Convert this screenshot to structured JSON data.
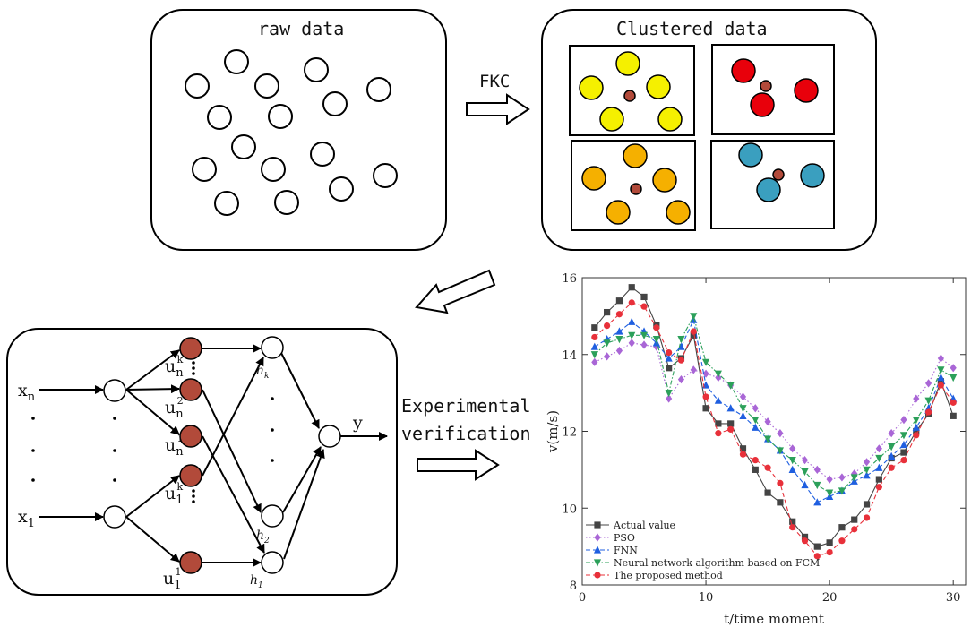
{
  "diagram": {
    "raw_title": "raw data",
    "clustered_title": "Clustered data",
    "step1_label": "FKC",
    "step3_label_line1": "Experimental",
    "step3_label_line2": "verification",
    "cluster_colors": {
      "yellow": "#f5f000",
      "red": "#e8000b",
      "orange": "#f5b000",
      "teal": "#3a9fbf",
      "center": "#b24a3a"
    },
    "network": {
      "input_top": "x",
      "input_top_sub": "n",
      "input_bottom": "x",
      "input_bottom_sub": "1",
      "output": "y",
      "u_labels": [
        {
          "base": "u",
          "sub": "n",
          "sup": "k"
        },
        {
          "base": "u",
          "sub": "n",
          "sup": "2"
        },
        {
          "base": "u",
          "sub": "n",
          "sup": "1"
        },
        {
          "base": "u",
          "sub": "1",
          "sup": "k"
        },
        {
          "base": "u",
          "sub": "1",
          "sup": "1"
        }
      ],
      "h_labels": [
        {
          "base": "h",
          "sub": "k"
        },
        {
          "base": "h",
          "sub": "2"
        },
        {
          "base": "h",
          "sub": "1"
        }
      ]
    }
  },
  "chart_data": {
    "type": "line",
    "xlabel": "t/time moment",
    "ylabel": "v(m/s)",
    "xlim": [
      0,
      31
    ],
    "ylim": [
      8,
      16
    ],
    "xticks": [
      0,
      10,
      20,
      30
    ],
    "yticks": [
      8,
      10,
      12,
      14,
      16
    ],
    "legend_position": "bottom-left",
    "x": [
      1,
      2,
      3,
      4,
      5,
      6,
      7,
      8,
      9,
      10,
      11,
      12,
      13,
      14,
      15,
      16,
      17,
      18,
      19,
      20,
      21,
      22,
      23,
      24,
      25,
      26,
      27,
      28,
      29,
      30
    ],
    "series": [
      {
        "name": "Actual value",
        "color": "#444444",
        "marker": "square",
        "dash": "solid",
        "values": [
          14.7,
          15.1,
          15.4,
          15.75,
          15.5,
          14.75,
          13.65,
          13.9,
          14.5,
          12.6,
          12.2,
          12.2,
          11.55,
          11.0,
          10.4,
          10.15,
          9.65,
          9.25,
          9.0,
          9.1,
          9.5,
          9.7,
          10.1,
          10.75,
          11.3,
          11.45,
          12.0,
          12.45,
          13.3,
          12.4
        ]
      },
      {
        "name": "PSO",
        "color": "#a966d6",
        "marker": "diamond",
        "dash": "dotted",
        "values": [
          13.8,
          13.95,
          14.1,
          14.3,
          14.25,
          14.2,
          12.85,
          13.35,
          13.6,
          13.5,
          13.4,
          13.2,
          12.9,
          12.6,
          12.25,
          11.95,
          11.55,
          11.25,
          11.0,
          10.75,
          10.8,
          10.9,
          11.2,
          11.55,
          11.95,
          12.3,
          12.85,
          13.25,
          13.9,
          13.65
        ]
      },
      {
        "name": "FNN",
        "color": "#1f5fe0",
        "marker": "triangle-up",
        "dash": "dashed",
        "values": [
          14.2,
          14.4,
          14.6,
          14.85,
          14.6,
          14.3,
          13.9,
          14.2,
          14.9,
          13.2,
          12.8,
          12.6,
          12.4,
          12.1,
          11.8,
          11.5,
          11.0,
          10.6,
          10.15,
          10.3,
          10.45,
          10.7,
          10.85,
          11.05,
          11.35,
          11.65,
          12.1,
          12.6,
          13.4,
          12.85
        ]
      },
      {
        "name": "Neural network algorithm based on FCM",
        "color": "#2ca05a",
        "marker": "triangle-down",
        "dash": "dashdot",
        "values": [
          14.0,
          14.3,
          14.4,
          14.5,
          14.5,
          14.4,
          13.0,
          14.4,
          15.0,
          13.8,
          13.5,
          13.2,
          12.6,
          12.3,
          11.8,
          11.5,
          11.25,
          10.95,
          10.6,
          10.4,
          10.45,
          10.8,
          11.0,
          11.3,
          11.6,
          11.9,
          12.3,
          12.8,
          13.6,
          13.4
        ]
      },
      {
        "name": "The proposed method",
        "color": "#e8303a",
        "marker": "circle",
        "dash": "dashed",
        "values": [
          14.45,
          14.75,
          15.05,
          15.35,
          15.25,
          14.7,
          14.05,
          13.85,
          14.6,
          12.9,
          11.95,
          12.05,
          11.4,
          11.25,
          11.05,
          10.65,
          9.5,
          9.15,
          8.75,
          8.85,
          9.15,
          9.45,
          9.75,
          10.55,
          11.05,
          11.25,
          11.9,
          12.5,
          13.2,
          12.75
        ]
      }
    ]
  }
}
